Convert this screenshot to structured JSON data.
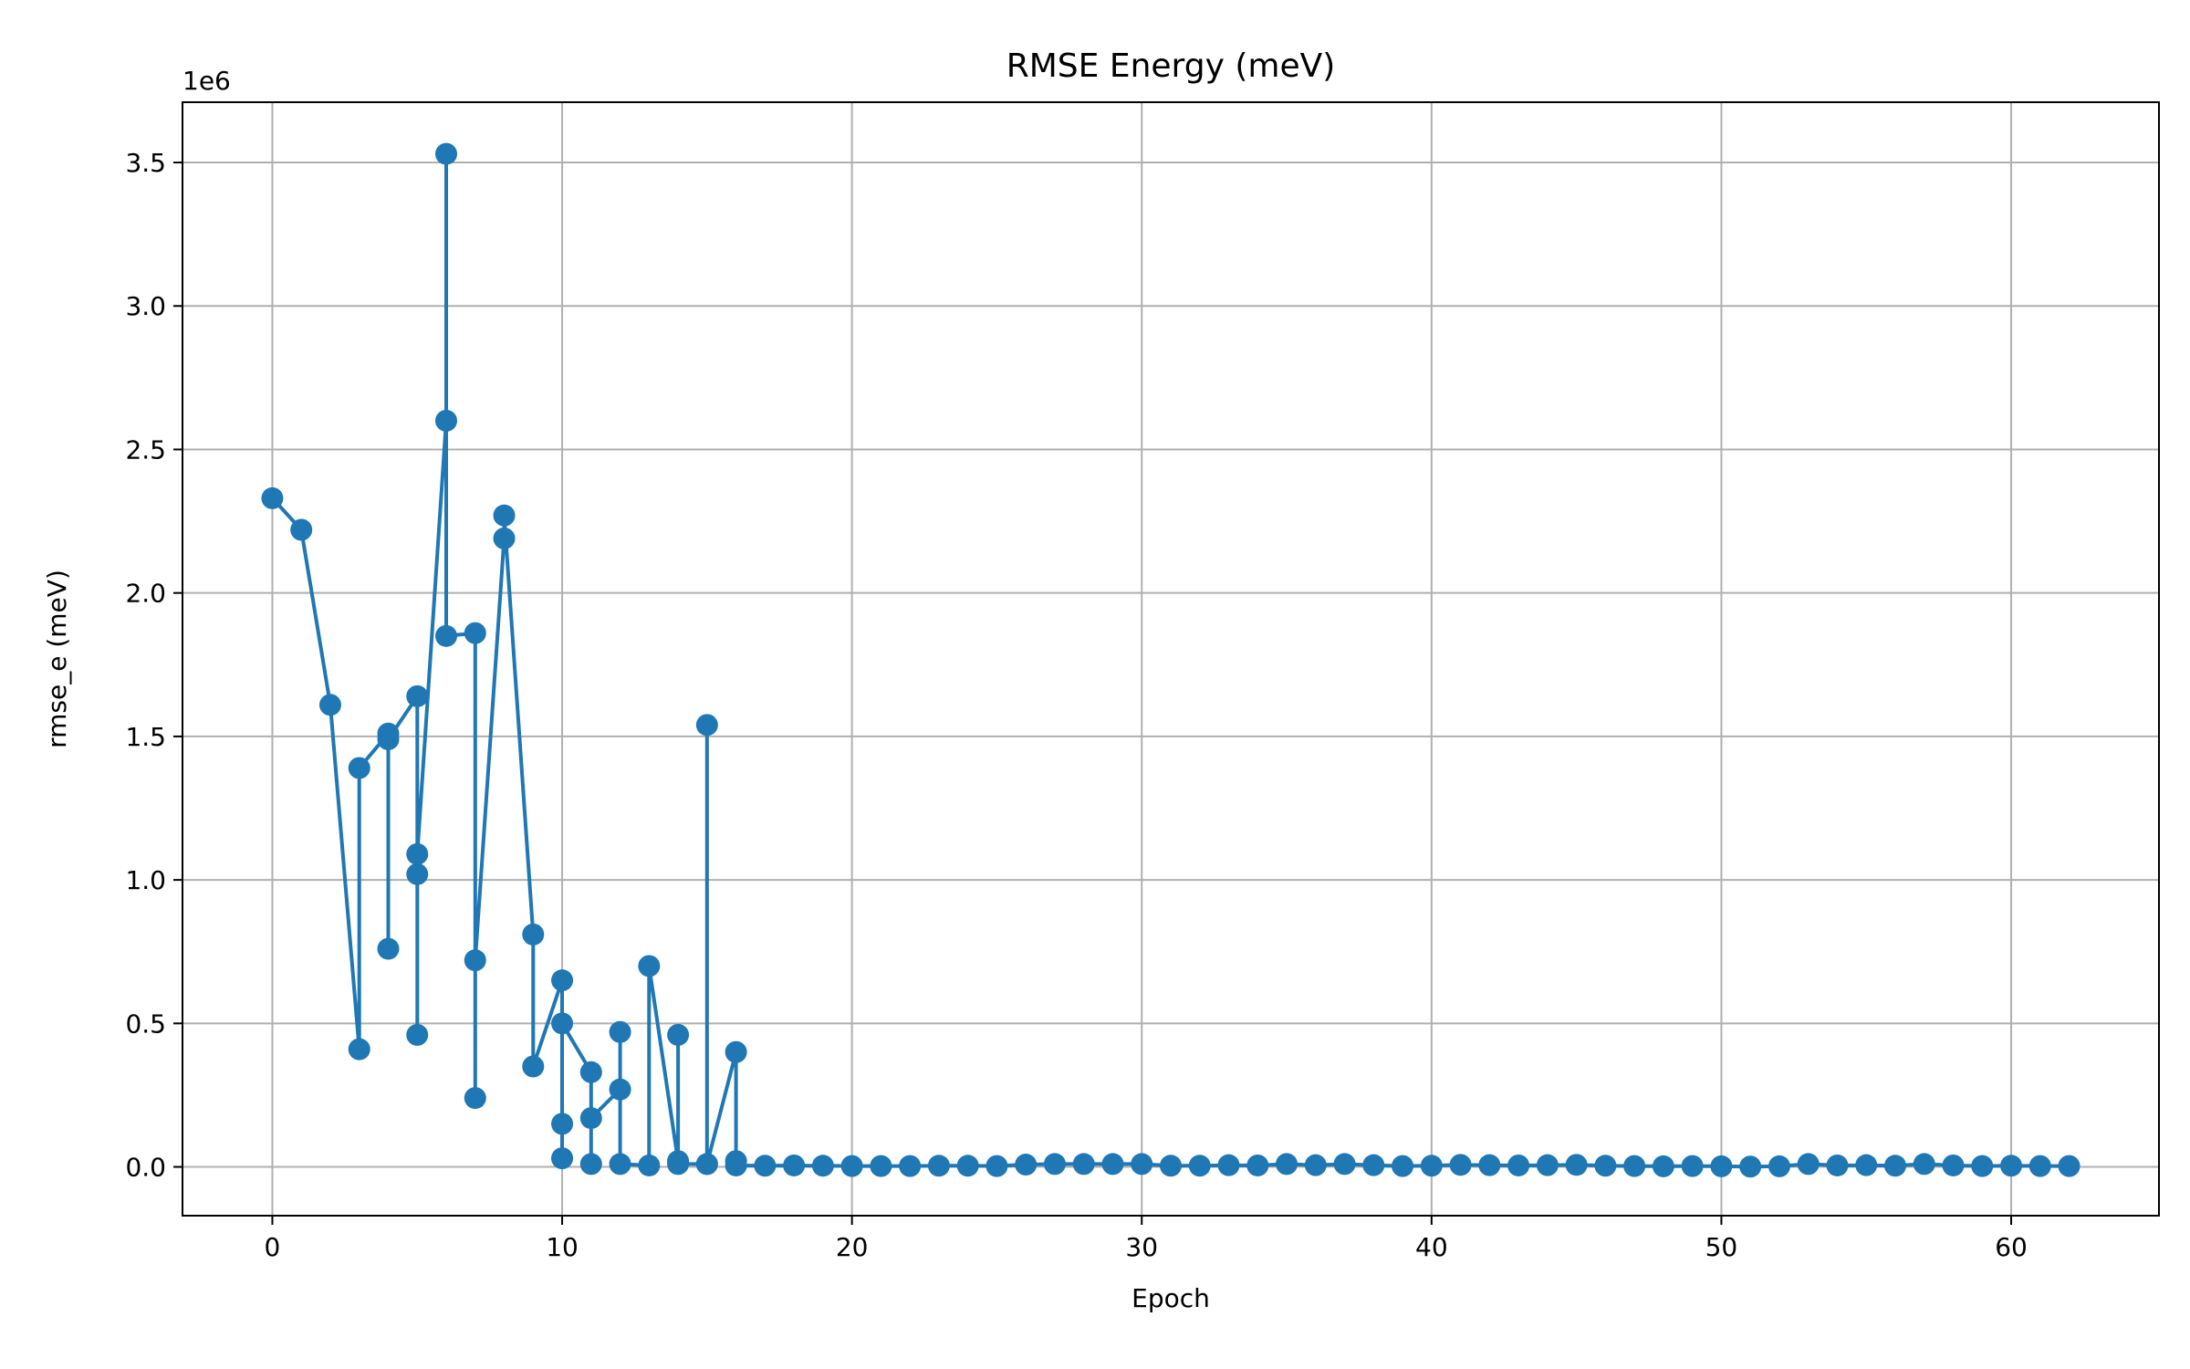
{
  "chart_data": {
    "type": "line",
    "title": "RMSE Energy (meV)",
    "xlabel": "Epoch",
    "ylabel": "rmse_e (meV)",
    "y_offset_label": "1e6",
    "xlim": [
      -3.1,
      65.1
    ],
    "ylim": [
      -0.17,
      3.71
    ],
    "x_ticks": [
      0,
      10,
      20,
      30,
      40,
      50,
      60
    ],
    "x_tick_labels": [
      "0",
      "10",
      "20",
      "30",
      "40",
      "50",
      "60"
    ],
    "y_ticks": [
      0.0,
      0.5,
      1.0,
      1.5,
      2.0,
      2.5,
      3.0,
      3.5
    ],
    "y_tick_labels": [
      "0.0",
      "0.5",
      "1.0",
      "1.5",
      "2.0",
      "2.5",
      "3.0",
      "3.5"
    ],
    "grid": true,
    "color": "#1f77b4",
    "series": [
      {
        "points": [
          [
            0,
            2.33
          ],
          [
            1,
            2.22
          ],
          [
            2,
            1.61
          ],
          [
            3,
            0.41
          ],
          [
            3,
            1.39
          ],
          [
            4,
            1.51
          ],
          [
            4,
            0.76
          ],
          [
            4,
            1.49
          ],
          [
            5,
            1.64
          ],
          [
            5,
            0.46
          ],
          [
            5,
            1.02
          ],
          [
            5,
            1.09
          ],
          [
            6,
            2.6
          ],
          [
            6,
            3.53
          ],
          [
            6,
            1.85
          ],
          [
            7,
            1.86
          ],
          [
            7,
            0.24
          ],
          [
            7,
            0.72
          ],
          [
            8,
            2.19
          ],
          [
            8,
            2.27
          ],
          [
            9,
            0.81
          ],
          [
            9,
            0.35
          ],
          [
            10,
            0.65
          ],
          [
            10,
            0.03
          ],
          [
            10,
            0.15
          ],
          [
            10,
            0.5
          ],
          [
            11,
            0.33
          ],
          [
            11,
            0.01
          ],
          [
            11,
            0.17
          ],
          [
            12,
            0.27
          ],
          [
            12,
            0.47
          ],
          [
            12,
            0.01
          ],
          [
            13,
            0.005
          ],
          [
            13,
            0.7
          ],
          [
            14,
            0.02
          ],
          [
            14,
            0.46
          ],
          [
            14,
            0.01
          ],
          [
            15,
            0.01
          ],
          [
            15,
            1.54
          ],
          [
            15,
            0.01
          ],
          [
            16,
            0.4
          ],
          [
            16,
            0.02
          ],
          [
            16,
            0.005
          ],
          [
            17,
            0.004
          ],
          [
            18,
            0.005
          ],
          [
            19,
            0.004
          ],
          [
            20,
            0.003
          ],
          [
            21,
            0.003
          ],
          [
            22,
            0.003
          ],
          [
            23,
            0.004
          ],
          [
            24,
            0.004
          ],
          [
            25,
            0.003
          ],
          [
            26,
            0.008
          ],
          [
            27,
            0.01
          ],
          [
            28,
            0.01
          ],
          [
            29,
            0.01
          ],
          [
            30,
            0.01
          ],
          [
            31,
            0.004
          ],
          [
            32,
            0.004
          ],
          [
            33,
            0.006
          ],
          [
            34,
            0.005
          ],
          [
            35,
            0.01
          ],
          [
            36,
            0.006
          ],
          [
            37,
            0.01
          ],
          [
            38,
            0.006
          ],
          [
            39,
            0.003
          ],
          [
            40,
            0.004
          ],
          [
            41,
            0.007
          ],
          [
            42,
            0.006
          ],
          [
            43,
            0.005
          ],
          [
            44,
            0.006
          ],
          [
            45,
            0.007
          ],
          [
            46,
            0.004
          ],
          [
            47,
            0.003
          ],
          [
            48,
            0.002
          ],
          [
            49,
            0.003
          ],
          [
            50,
            0.002
          ],
          [
            51,
            0.001
          ],
          [
            52,
            0.002
          ],
          [
            53,
            0.01
          ],
          [
            54,
            0.005
          ],
          [
            55,
            0.006
          ],
          [
            56,
            0.004
          ],
          [
            57,
            0.01
          ],
          [
            58,
            0.005
          ],
          [
            59,
            0.003
          ],
          [
            60,
            0.004
          ],
          [
            61,
            0.003
          ],
          [
            62,
            0.003
          ]
        ]
      }
    ]
  }
}
